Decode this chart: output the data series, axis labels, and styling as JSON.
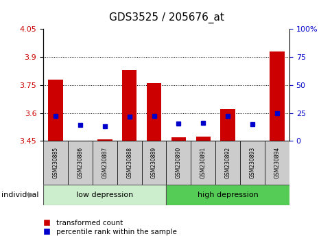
{
  "title": "GDS3525 / 205676_at",
  "samples": [
    "GSM230885",
    "GSM230886",
    "GSM230887",
    "GSM230888",
    "GSM230889",
    "GSM230890",
    "GSM230891",
    "GSM230892",
    "GSM230893",
    "GSM230894"
  ],
  "red_bar_tops": [
    3.78,
    3.445,
    3.46,
    3.83,
    3.76,
    3.47,
    3.475,
    3.62,
    3.445,
    3.93
  ],
  "blue_dot_values": [
    3.585,
    3.535,
    3.53,
    3.58,
    3.582,
    3.545,
    3.548,
    3.582,
    3.54,
    3.6
  ],
  "baseline": 3.445,
  "ylim_left": [
    3.45,
    4.05
  ],
  "ylim_right": [
    0,
    100
  ],
  "yticks_left": [
    3.45,
    3.6,
    3.75,
    3.9,
    4.05
  ],
  "yticks_right": [
    0,
    25,
    50,
    75,
    100
  ],
  "grid_lines": [
    3.6,
    3.75,
    3.9
  ],
  "group_labels": [
    "low depression",
    "high depression"
  ],
  "group_low_range": [
    0,
    4
  ],
  "group_high_range": [
    5,
    9
  ],
  "left_color": "#CC0000",
  "right_color": "#0000CC",
  "legend_red": "transformed count",
  "legend_blue": "percentile rank within the sample",
  "individual_label": "individual",
  "bar_width": 0.6,
  "bg_color": "#FFFFFF",
  "plot_bg": "#FFFFFF",
  "tick_label_color_left": "#CC0000",
  "tick_label_color_right": "#0000CC",
  "sample_box_color": "#CCCCCC",
  "group_low_color": "#CCEECC",
  "group_high_color": "#55CC55",
  "title_fontsize": 11
}
